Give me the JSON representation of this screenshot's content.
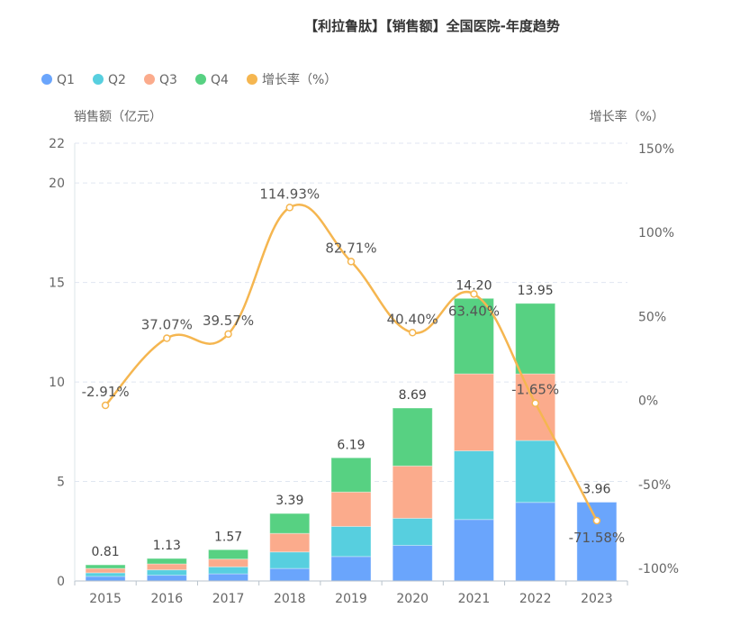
{
  "chart_data": {
    "type": "bar",
    "title": "【利拉鲁肽】【销售额】全国医院-年度趋势",
    "ylabel": "销售额（亿元）",
    "y2label": "增长率（%）",
    "categories": [
      "2015",
      "2016",
      "2017",
      "2018",
      "2019",
      "2020",
      "2021",
      "2022",
      "2023"
    ],
    "ylim": [
      0,
      22
    ],
    "yticks": [
      0,
      5,
      10,
      15,
      20,
      22
    ],
    "y2lim": [
      -100,
      150
    ],
    "y2ticks": [
      "-100%",
      "-50%",
      "0%",
      "50%",
      "100%",
      "150%"
    ],
    "y2tick_values": [
      -100,
      -50,
      0,
      50,
      100,
      150
    ],
    "grid": true,
    "legend_position": "top-left",
    "stacked": true,
    "series": [
      {
        "name": "Q1",
        "color": "#6aa5fc",
        "values": [
          0.23,
          0.29,
          0.36,
          0.63,
          1.23,
          1.79,
          3.09,
          3.95,
          3.96
        ]
      },
      {
        "name": "Q2",
        "color": "#57cfdf",
        "values": [
          0.18,
          0.27,
          0.35,
          0.83,
          1.51,
          1.36,
          3.45,
          3.11,
          0
        ]
      },
      {
        "name": "Q3",
        "color": "#fbab8c",
        "values": [
          0.22,
          0.3,
          0.39,
          0.93,
          1.73,
          2.63,
          3.87,
          3.35,
          0
        ]
      },
      {
        "name": "Q4",
        "color": "#57d182",
        "values": [
          0.18,
          0.27,
          0.47,
          1.0,
          1.72,
          2.91,
          3.79,
          3.54,
          0
        ]
      }
    ],
    "totals": [
      "0.81",
      "1.13",
      "1.57",
      "3.39",
      "6.19",
      "8.69",
      "14.20",
      "13.95",
      "3.96"
    ],
    "total_values": [
      0.81,
      1.13,
      1.57,
      3.39,
      6.19,
      8.69,
      14.2,
      13.95,
      3.96
    ],
    "growth": {
      "name": "增长率（%）",
      "color": "#f5b650",
      "values": [
        -2.91,
        37.07,
        39.57,
        114.93,
        82.71,
        40.4,
        63.4,
        -1.65,
        -71.58
      ],
      "labels": [
        "-2.91%",
        "37.07%",
        "39.57%",
        "114.93%",
        "82.71%",
        "40.40%",
        "63.40%",
        "-1.65%",
        "-71.58%"
      ]
    }
  }
}
